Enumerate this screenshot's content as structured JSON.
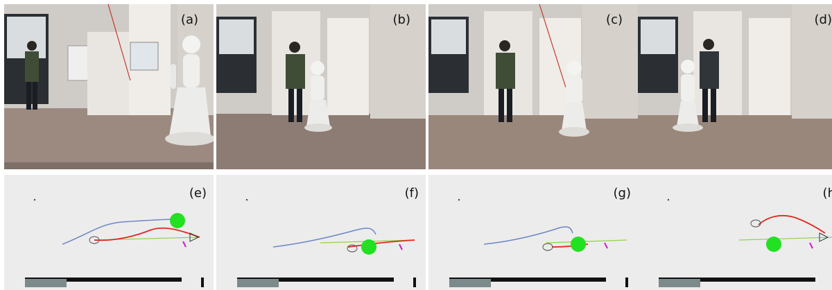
{
  "photos": [
    {
      "label": "(a)",
      "robot": "pepper-robot",
      "person": "person"
    },
    {
      "label": "(b)",
      "robot": "pepper-robot",
      "person": "person"
    },
    {
      "label": "(c)",
      "robot": "pepper-robot",
      "person": "person"
    },
    {
      "label": "(d)",
      "robot": "pepper-robot",
      "person": "person"
    }
  ],
  "plots": [
    {
      "label": "(e)"
    },
    {
      "label": "(f)"
    },
    {
      "label": "(g)"
    },
    {
      "label": "(h)"
    }
  ],
  "colors": {
    "human_path": "#6b86c4",
    "robot_path": "#e0281c",
    "goal_line": "#8fd14f",
    "human_marker": "#22e022",
    "plot_bg": "#ececec",
    "floor": "#9c8a80",
    "wall": "#cfcbc6"
  }
}
